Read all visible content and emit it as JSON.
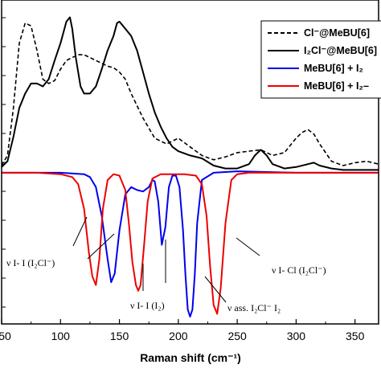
{
  "chart_data": {
    "type": "line",
    "xlabel": "Raman shift (cm⁻¹)",
    "ylabel": "",
    "xlim": [
      50,
      370
    ],
    "ylim": [
      -1.05,
      1.2
    ],
    "x_ticks": [
      50,
      100,
      150,
      200,
      250,
      300,
      350
    ],
    "x_tick_labels": [
      "50",
      "100",
      "150",
      "200",
      "250",
      "300",
      "350"
    ],
    "grid": false,
    "legend_position": "top-right",
    "series": [
      {
        "name": "Cl⁻@MeBU[6]",
        "color": "#000000",
        "dash": "dashed",
        "x": [
          50,
          55,
          60,
          65,
          70,
          75,
          80,
          85,
          90,
          95,
          100,
          105,
          110,
          115,
          120,
          125,
          130,
          135,
          140,
          145,
          150,
          155,
          160,
          170,
          180,
          190,
          200,
          210,
          220,
          230,
          240,
          250,
          260,
          270,
          280,
          290,
          300,
          305,
          310,
          315,
          320,
          330,
          340,
          350,
          360,
          370
        ],
        "y": [
          0.05,
          0.12,
          0.45,
          0.9,
          1.04,
          1.02,
          0.85,
          0.65,
          0.62,
          0.64,
          0.72,
          0.78,
          0.8,
          0.82,
          0.82,
          0.8,
          0.78,
          0.76,
          0.74,
          0.73,
          0.7,
          0.65,
          0.55,
          0.38,
          0.24,
          0.2,
          0.24,
          0.18,
          0.12,
          0.09,
          0.11,
          0.14,
          0.15,
          0.16,
          0.12,
          0.14,
          0.24,
          0.28,
          0.3,
          0.27,
          0.2,
          0.08,
          0.05,
          0.07,
          0.08,
          0.06
        ]
      },
      {
        "name": "I₂Cl⁻@MeBU[6]",
        "color": "#000000",
        "dash": "solid",
        "x": [
          50,
          55,
          60,
          65,
          70,
          75,
          80,
          85,
          90,
          95,
          100,
          105,
          108,
          110,
          113,
          117,
          120,
          125,
          130,
          135,
          140,
          145,
          148,
          150,
          153,
          155,
          160,
          165,
          170,
          175,
          180,
          185,
          190,
          195,
          200,
          210,
          220,
          230,
          240,
          250,
          260,
          265,
          270,
          275,
          280,
          290,
          300,
          310,
          315,
          320,
          330,
          340,
          350,
          360,
          370
        ],
        "y": [
          0.04,
          0.08,
          0.25,
          0.45,
          0.55,
          0.62,
          0.62,
          0.6,
          0.65,
          0.78,
          0.9,
          1.05,
          1.08,
          1.0,
          0.8,
          0.6,
          0.55,
          0.55,
          0.6,
          0.72,
          0.85,
          0.95,
          1.04,
          1.05,
          1.02,
          1.0,
          0.95,
          0.85,
          0.7,
          0.55,
          0.42,
          0.32,
          0.24,
          0.18,
          0.15,
          0.12,
          0.1,
          0.05,
          0.03,
          0.03,
          0.06,
          0.12,
          0.16,
          0.12,
          0.06,
          0.03,
          0.04,
          0.06,
          0.07,
          0.05,
          0.03,
          0.02,
          0.02,
          0.02,
          0.02
        ]
      },
      {
        "name": "MeBU[6] + I₂",
        "color": "#0000ee",
        "dash": "solid",
        "x": [
          50,
          100,
          120,
          125,
          130,
          135,
          140,
          143,
          146,
          150,
          155,
          160,
          165,
          170,
          175,
          178,
          180,
          183,
          186,
          189,
          192,
          195,
          198,
          201,
          204,
          206,
          208,
          210,
          212,
          214,
          216,
          220,
          230,
          250,
          300,
          370
        ],
        "y": [
          0.0,
          0.0,
          -0.01,
          -0.03,
          -0.1,
          -0.3,
          -0.6,
          -0.76,
          -0.7,
          -0.4,
          -0.15,
          -0.1,
          -0.12,
          -0.13,
          -0.1,
          -0.05,
          -0.06,
          -0.2,
          -0.5,
          -0.38,
          -0.1,
          -0.02,
          -0.02,
          -0.1,
          -0.4,
          -0.7,
          -0.95,
          -1.0,
          -0.95,
          -0.7,
          -0.35,
          -0.05,
          0.0,
          0.01,
          0.0,
          0.0
        ]
      },
      {
        "name": "MeBU[6] + I₂–",
        "color": "#ee0000",
        "dash": "solid",
        "x": [
          50,
          80,
          100,
          110,
          115,
          120,
          124,
          127,
          130,
          133,
          136,
          140,
          145,
          150,
          155,
          158,
          161,
          164,
          166,
          168,
          171,
          174,
          178,
          185,
          195,
          205,
          215,
          220,
          224,
          227,
          230,
          233,
          236,
          240,
          245,
          250,
          260,
          300,
          370
        ],
        "y": [
          0.0,
          0.0,
          -0.01,
          -0.03,
          -0.08,
          -0.25,
          -0.55,
          -0.72,
          -0.78,
          -0.6,
          -0.25,
          -0.05,
          -0.01,
          -0.02,
          -0.12,
          -0.35,
          -0.62,
          -0.78,
          -0.82,
          -0.78,
          -0.5,
          -0.2,
          -0.04,
          -0.01,
          -0.01,
          -0.01,
          -0.02,
          -0.08,
          -0.3,
          -0.65,
          -0.92,
          -0.98,
          -0.8,
          -0.35,
          -0.05,
          -0.01,
          0.0,
          0.0,
          0.0
        ]
      }
    ],
    "annotations": [
      {
        "id": "ann1",
        "text": "ν I- I  (I₂Cl⁻)"
      },
      {
        "id": "ann2",
        "text": "ν I- I  (I₂)"
      },
      {
        "id": "ann3",
        "text": "ν ass. I₂Cl⁻ I₂"
      },
      {
        "id": "ann4",
        "text": "ν I- Cl  (I₂Cl⁻)"
      }
    ]
  }
}
